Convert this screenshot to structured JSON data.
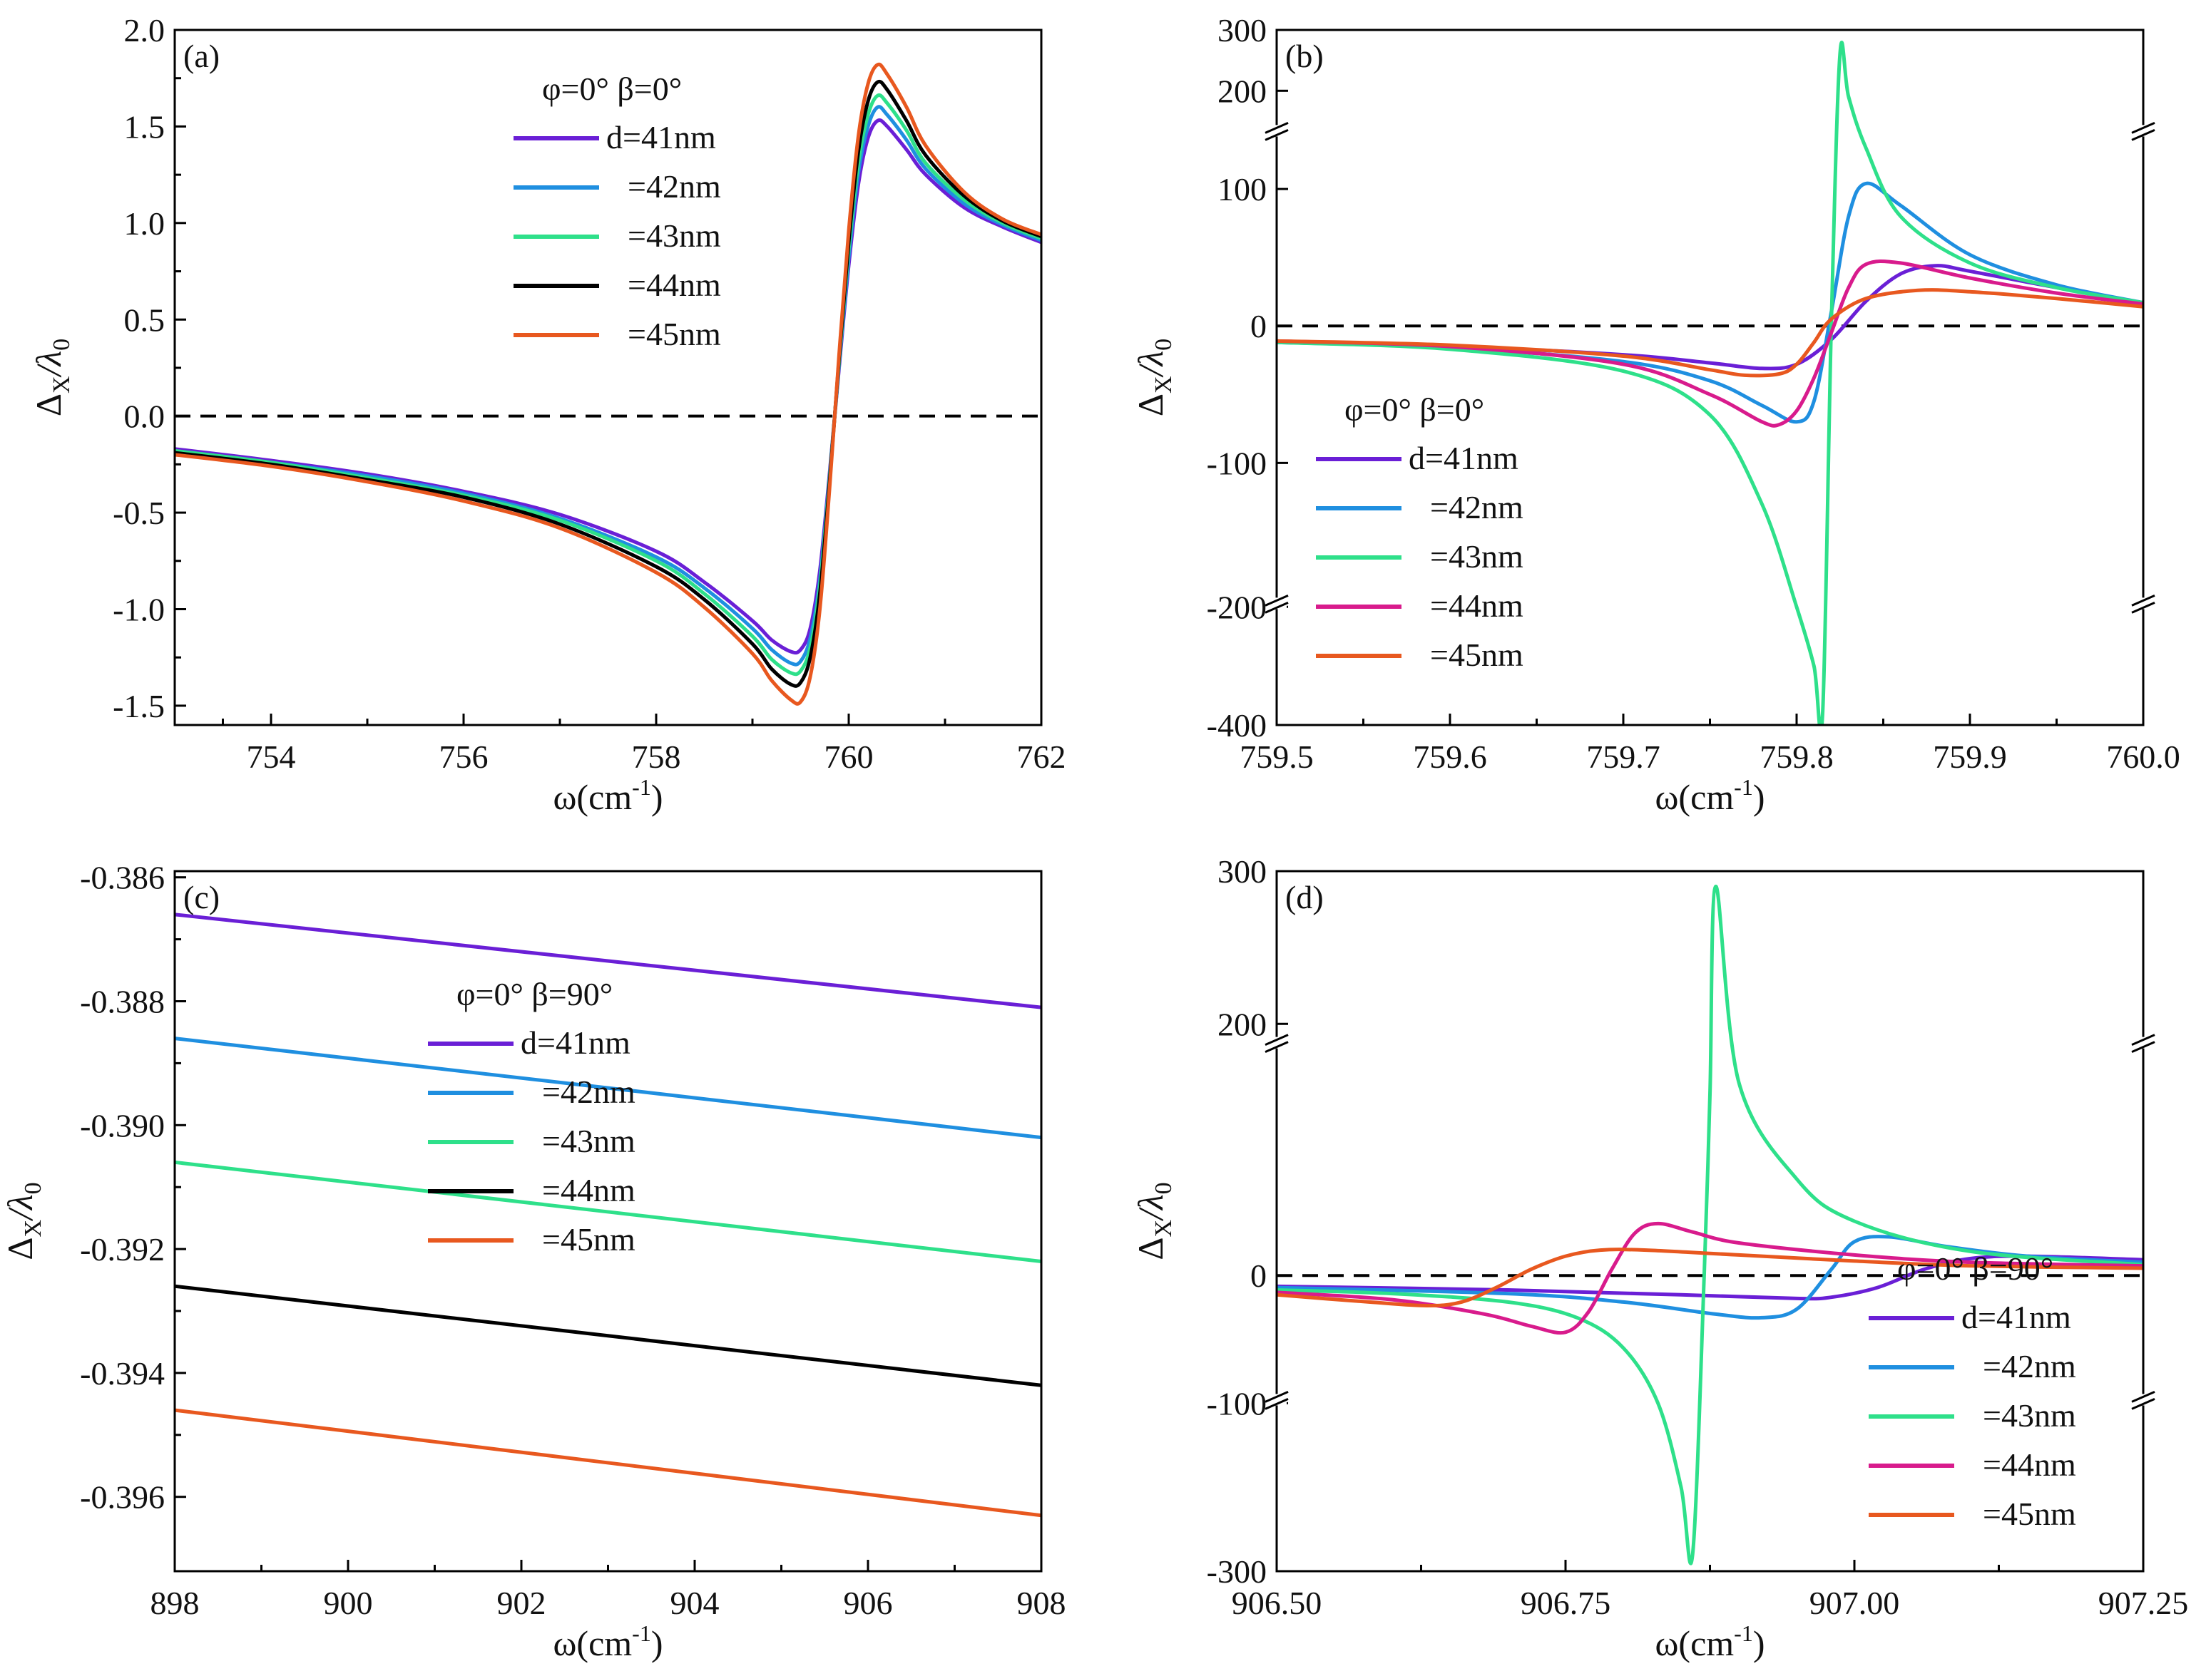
{
  "figure": {
    "description_free": true
  },
  "chart_data": [
    {
      "id": "a",
      "type": "line",
      "panel_label": "(a)",
      "xlabel": "ω(cm",
      "xlabel_sup": "-1",
      "xlabel_tail": ")",
      "ylabel": "Δ",
      "ylabel_sub": "X",
      "ylabel_mid": "/λ",
      "ylabel_sub2": "0",
      "xlim": [
        753,
        762
      ],
      "ylim": [
        -1.6,
        2.0
      ],
      "xticks": [
        754,
        756,
        758,
        760,
        762
      ],
      "xtick_labels": [
        "754",
        "756",
        "758",
        "760",
        "762"
      ],
      "yticks": [
        -1.5,
        -1.0,
        -0.5,
        0.0,
        0.5,
        1.0,
        1.5,
        2.0
      ],
      "ytick_labels": [
        "-1.5",
        "-1.0",
        "-0.5",
        "0.0",
        "0.5",
        "1.0",
        "1.5",
        "2.0"
      ],
      "reference_line_y": 0,
      "legend": {
        "title": "φ=0° β=0°",
        "placement": "top-center"
      },
      "series": [
        {
          "name": "d=41nm",
          "color": "#6a1fd6",
          "x": [
            753,
            754,
            755,
            756,
            757,
            758,
            758.5,
            759,
            759.2,
            759.4,
            759.5,
            759.6,
            759.7,
            759.8,
            759.9,
            760.0,
            760.1,
            760.2,
            760.3,
            760.4,
            760.6,
            760.8,
            761.2,
            761.6,
            762
          ],
          "y": [
            -0.17,
            -0.23,
            -0.3,
            -0.39,
            -0.51,
            -0.7,
            -0.86,
            -1.06,
            -1.16,
            -1.22,
            -1.21,
            -1.1,
            -0.8,
            -0.3,
            0.25,
            0.78,
            1.2,
            1.44,
            1.53,
            1.5,
            1.38,
            1.25,
            1.08,
            0.98,
            0.9
          ]
        },
        {
          "name": "=42nm",
          "color": "#1f8fe0",
          "x": [
            753,
            754,
            755,
            756,
            757,
            758,
            758.5,
            759,
            759.2,
            759.4,
            759.5,
            759.6,
            759.7,
            759.8,
            759.9,
            760.0,
            760.1,
            760.2,
            760.3,
            760.4,
            760.6,
            760.8,
            761.2,
            761.6,
            762
          ],
          "y": [
            -0.18,
            -0.24,
            -0.31,
            -0.4,
            -0.53,
            -0.73,
            -0.89,
            -1.1,
            -1.21,
            -1.28,
            -1.27,
            -1.15,
            -0.85,
            -0.32,
            0.27,
            0.82,
            1.26,
            1.5,
            1.6,
            1.56,
            1.43,
            1.28,
            1.1,
            0.99,
            0.91
          ]
        },
        {
          "name": "=43nm",
          "color": "#2ee08a",
          "x": [
            753,
            754,
            755,
            756,
            757,
            758,
            758.5,
            759,
            759.2,
            759.4,
            759.5,
            759.6,
            759.7,
            759.8,
            759.9,
            760.0,
            760.1,
            760.2,
            760.3,
            760.4,
            760.6,
            760.8,
            761.2,
            761.6,
            762
          ],
          "y": [
            -0.18,
            -0.24,
            -0.32,
            -0.41,
            -0.54,
            -0.75,
            -0.92,
            -1.14,
            -1.26,
            -1.33,
            -1.32,
            -1.2,
            -0.88,
            -0.33,
            0.28,
            0.86,
            1.31,
            1.56,
            1.66,
            1.62,
            1.48,
            1.31,
            1.12,
            1.0,
            0.92
          ]
        },
        {
          "name": "=44nm",
          "color": "#000000",
          "x": [
            753,
            754,
            755,
            756,
            757,
            758,
            758.5,
            759,
            759.2,
            759.4,
            759.5,
            759.6,
            759.7,
            759.8,
            759.9,
            760.0,
            760.1,
            760.2,
            760.3,
            760.4,
            760.6,
            760.8,
            761.2,
            761.6,
            762
          ],
          "y": [
            -0.19,
            -0.25,
            -0.33,
            -0.42,
            -0.56,
            -0.78,
            -0.95,
            -1.18,
            -1.31,
            -1.39,
            -1.38,
            -1.25,
            -0.92,
            -0.35,
            0.3,
            0.9,
            1.37,
            1.63,
            1.73,
            1.69,
            1.53,
            1.35,
            1.14,
            1.01,
            0.93
          ]
        },
        {
          "name": "=45nm",
          "color": "#e8581f",
          "x": [
            753,
            754,
            755,
            756,
            757,
            758,
            758.5,
            759,
            759.2,
            759.4,
            759.5,
            759.6,
            759.7,
            759.8,
            759.9,
            760.0,
            760.1,
            760.2,
            760.3,
            760.4,
            760.6,
            760.8,
            761.2,
            761.6,
            762
          ],
          "y": [
            -0.2,
            -0.26,
            -0.34,
            -0.44,
            -0.58,
            -0.81,
            -0.99,
            -1.23,
            -1.37,
            -1.47,
            -1.48,
            -1.35,
            -1.0,
            -0.38,
            0.32,
            0.96,
            1.45,
            1.72,
            1.82,
            1.77,
            1.6,
            1.4,
            1.16,
            1.02,
            0.94
          ]
        }
      ]
    },
    {
      "id": "b",
      "type": "line",
      "panel_label": "(b)",
      "xlabel": "ω(cm",
      "xlabel_sup": "-1",
      "xlabel_tail": ")",
      "ylabel": "Δ",
      "ylabel_sub": "X",
      "ylabel_mid": "/λ",
      "ylabel_sub2": "0",
      "xlim": [
        759.5,
        760.0
      ],
      "broken_axis": true,
      "y_segments": [
        [
          -400,
          -200
        ],
        [
          -200,
          140
        ],
        [
          140,
          300
        ]
      ],
      "yticks": [
        -400,
        -200,
        -100,
        0,
        100,
        200,
        300
      ],
      "ytick_labels": [
        "-400",
        "-200",
        "-100",
        "0",
        "100",
        "200",
        "300"
      ],
      "xticks": [
        759.5,
        759.6,
        759.7,
        759.8,
        759.9,
        760.0
      ],
      "xtick_labels": [
        "759.5",
        "759.6",
        "759.7",
        "759.8",
        "759.9",
        "760.0"
      ],
      "reference_line_y": 0,
      "legend": {
        "title": "φ=0° β=0°",
        "placement": "bottom-left"
      },
      "series": [
        {
          "name": "d=41nm",
          "color": "#6a1fd6",
          "x": [
            759.5,
            759.6,
            759.7,
            759.75,
            759.78,
            759.8,
            759.82,
            759.84,
            759.86,
            759.88,
            759.9,
            759.95,
            760.0
          ],
          "y": [
            -12,
            -15,
            -21,
            -27,
            -31,
            -28,
            -10,
            18,
            38,
            44,
            40,
            28,
            17
          ]
        },
        {
          "name": "=42nm",
          "color": "#1f8fe0",
          "x": [
            759.5,
            759.6,
            759.7,
            759.75,
            759.78,
            759.8,
            759.81,
            759.82,
            759.83,
            759.84,
            759.86,
            759.9,
            759.95,
            760.0
          ],
          "y": [
            -12,
            -16,
            -26,
            -40,
            -58,
            -70,
            -55,
            10,
            80,
            104,
            88,
            52,
            30,
            17
          ]
        },
        {
          "name": "=43nm",
          "color": "#2ee08a",
          "x": [
            759.5,
            759.6,
            759.7,
            759.75,
            759.78,
            759.8,
            759.81,
            759.815,
            759.82,
            759.825,
            759.83,
            759.84,
            759.86,
            759.9,
            759.95,
            760.0
          ],
          "y": [
            -12,
            -17,
            -33,
            -65,
            -130,
            -200,
            -300,
            -380,
            0,
            260,
            190,
            130,
            80,
            46,
            28,
            17
          ]
        },
        {
          "name": "=44nm",
          "color": "#d81b8c",
          "x": [
            759.5,
            759.6,
            759.7,
            759.75,
            759.78,
            759.79,
            759.8,
            759.81,
            759.82,
            759.83,
            759.84,
            759.86,
            759.9,
            759.95,
            760.0
          ],
          "y": [
            -11,
            -15,
            -28,
            -50,
            -70,
            -72,
            -62,
            -38,
            -5,
            28,
            45,
            46,
            35,
            24,
            16
          ]
        },
        {
          "name": "=45nm",
          "color": "#e8581f",
          "x": [
            759.5,
            759.6,
            759.7,
            759.75,
            759.77,
            759.79,
            759.8,
            759.81,
            759.82,
            759.84,
            759.87,
            759.9,
            759.95,
            760.0
          ],
          "y": [
            -11,
            -14,
            -22,
            -32,
            -36,
            -35,
            -28,
            -12,
            5,
            20,
            26,
            25,
            20,
            14
          ]
        }
      ]
    },
    {
      "id": "c",
      "type": "line",
      "panel_label": "(c)",
      "xlabel": "ω(cm",
      "xlabel_sup": "-1",
      "xlabel_tail": ")",
      "ylabel": "Δ",
      "ylabel_sub": "X",
      "ylabel_mid": "/λ",
      "ylabel_sub2": "0",
      "xlim": [
        898,
        908
      ],
      "ylim": [
        -0.3972,
        -0.3859
      ],
      "xticks": [
        898,
        900,
        902,
        904,
        906,
        908
      ],
      "xtick_labels": [
        "898",
        "900",
        "902",
        "904",
        "906",
        "908"
      ],
      "yticks": [
        -0.396,
        -0.394,
        -0.392,
        -0.39,
        -0.388,
        -0.386
      ],
      "ytick_labels": [
        "-0.396",
        "-0.394",
        "-0.392",
        "-0.390",
        "-0.388",
        "-0.386"
      ],
      "legend": {
        "title": "φ=0° β=90°",
        "placement": "upper-left"
      },
      "series": [
        {
          "name": "d=41nm",
          "color": "#6a1fd6",
          "x": [
            898,
            908
          ],
          "y": [
            -0.3866,
            -0.3881
          ]
        },
        {
          "name": "=42nm",
          "color": "#1f8fe0",
          "x": [
            898,
            908
          ],
          "y": [
            -0.3886,
            -0.3902
          ]
        },
        {
          "name": "=43nm",
          "color": "#2ee08a",
          "x": [
            898,
            908
          ],
          "y": [
            -0.3906,
            -0.3922
          ]
        },
        {
          "name": "=44nm",
          "color": "#000000",
          "x": [
            898,
            908
          ],
          "y": [
            -0.3926,
            -0.3942
          ]
        },
        {
          "name": "=45nm",
          "color": "#e8581f",
          "x": [
            898,
            908
          ],
          "y": [
            -0.3946,
            -0.3963
          ]
        }
      ]
    },
    {
      "id": "d",
      "type": "line",
      "panel_label": "(d)",
      "xlabel": "ω(cm",
      "xlabel_sup": "-1",
      "xlabel_tail": ")",
      "ylabel": "Δ",
      "ylabel_sub": "X",
      "ylabel_mid": "/λ",
      "ylabel_sub2": "0",
      "xlim": [
        906.5,
        907.25
      ],
      "broken_axis": true,
      "y_segments": [
        [
          -300,
          -100
        ],
        [
          -100,
          190
        ],
        [
          190,
          300
        ]
      ],
      "yticks": [
        -300,
        -100,
        0,
        200,
        300
      ],
      "ytick_labels": [
        "-300",
        "-100",
        "0",
        "200",
        "300"
      ],
      "xticks": [
        906.5,
        906.75,
        907.0,
        907.25
      ],
      "xtick_labels": [
        "906.50",
        "906.75",
        "907.00",
        "907.25"
      ],
      "reference_line_y": 0,
      "legend": {
        "title": "φ=0° β=90°",
        "placement": "bottom-right"
      },
      "series": [
        {
          "name": "d=41nm",
          "color": "#6a1fd6",
          "x": [
            906.5,
            906.7,
            906.85,
            906.95,
            906.98,
            907.02,
            907.06,
            907.1,
            907.15,
            907.25
          ],
          "y": [
            -9,
            -12,
            -16,
            -19,
            -18,
            -10,
            5,
            14,
            16,
            13
          ]
        },
        {
          "name": "=42nm",
          "color": "#1f8fe0",
          "x": [
            906.5,
            906.7,
            906.8,
            906.88,
            906.92,
            906.95,
            906.98,
            907.0,
            907.03,
            907.08,
            907.15,
            907.25
          ],
          "y": [
            -10,
            -15,
            -22,
            -32,
            -35,
            -28,
            5,
            28,
            32,
            24,
            16,
            11
          ]
        },
        {
          "name": "=43nm",
          "color": "#2ee08a",
          "x": [
            906.5,
            906.6,
            906.7,
            906.76,
            906.8,
            906.83,
            906.85,
            906.86,
            906.87,
            906.875,
            906.88,
            906.9,
            906.95,
            907.0,
            907.1,
            907.25
          ],
          "y": [
            -12,
            -15,
            -22,
            -35,
            -60,
            -100,
            -200,
            -280,
            0,
            150,
            290,
            160,
            80,
            45,
            20,
            9
          ]
        },
        {
          "name": "=44nm",
          "color": "#d81b8c",
          "x": [
            906.5,
            906.6,
            906.68,
            906.72,
            906.75,
            906.77,
            906.79,
            906.81,
            906.83,
            906.86,
            906.9,
            907.0,
            907.1,
            907.25
          ],
          "y": [
            -14,
            -20,
            -32,
            -42,
            -47,
            -30,
            5,
            35,
            43,
            36,
            27,
            17,
            11,
            8
          ]
        },
        {
          "name": "=45nm",
          "color": "#e8581f",
          "x": [
            906.5,
            906.58,
            906.63,
            906.66,
            906.69,
            906.72,
            906.75,
            906.78,
            906.82,
            906.9,
            907.0,
            907.1,
            907.25
          ],
          "y": [
            -16,
            -22,
            -25,
            -22,
            -10,
            5,
            16,
            21,
            21,
            17,
            12,
            8,
            6
          ]
        }
      ]
    }
  ]
}
